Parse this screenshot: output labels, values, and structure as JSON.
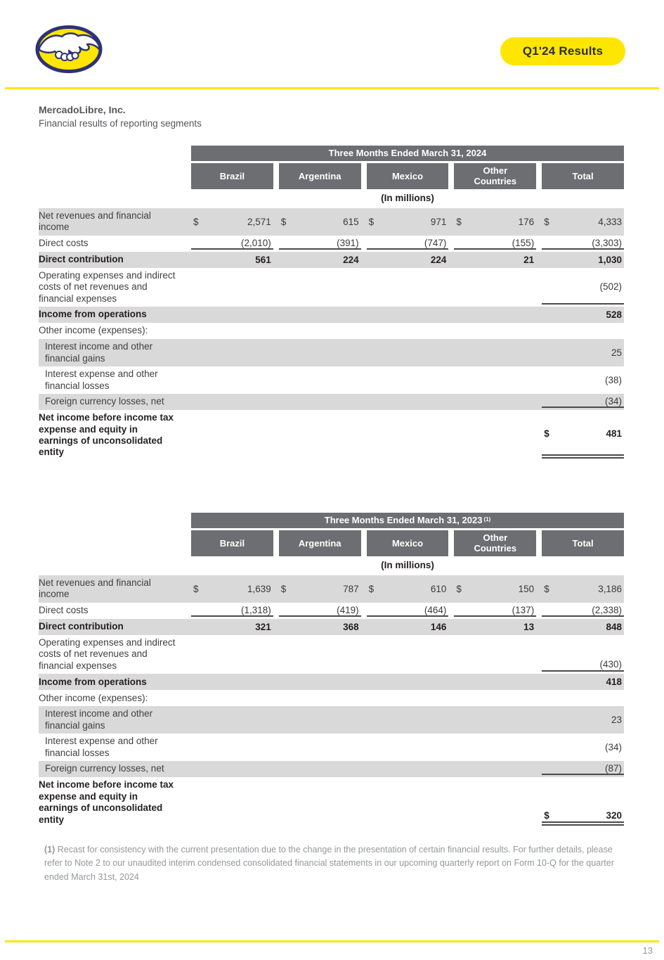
{
  "header": {
    "badge_label": "Q1'24 Results",
    "logo_name": "mercadolibre-handshake-logo"
  },
  "titles": {
    "company": "MercadoLibre, Inc.",
    "subtitle": "Financial results of reporting segments"
  },
  "colors": {
    "brand_yellow": "#FFE600",
    "table_header_gray": "#6D6E71",
    "row_shade_gray": "#D9D9D9",
    "rule_dark": "#4A4A4C"
  },
  "tables": [
    {
      "title": "Three Months Ended March 31, 2024",
      "title_sup": "",
      "columns": [
        "Brazil",
        "Argentina",
        "Mexico",
        "Other\nCountries",
        "Total"
      ],
      "units": "(In millions)",
      "rows": [
        {
          "label": "Net revenues and financial income",
          "shaded": true,
          "cells": [
            {
              "c": "$",
              "v": "2,571"
            },
            {
              "c": "$",
              "v": "615"
            },
            {
              "c": "$",
              "v": "971"
            },
            {
              "c": "$",
              "v": "176"
            },
            {
              "c": "$",
              "v": "4,333"
            }
          ]
        },
        {
          "label": "Direct costs",
          "rule": "all",
          "cells": [
            {
              "v": "(2,010)"
            },
            {
              "v": "(391)"
            },
            {
              "v": "(747)"
            },
            {
              "v": "(155)"
            },
            {
              "v": "(3,303)"
            }
          ]
        },
        {
          "label": "Direct contribution",
          "shaded": true,
          "bold": true,
          "cells": [
            {
              "v": "561"
            },
            {
              "v": "224"
            },
            {
              "v": "224"
            },
            {
              "v": "21"
            },
            {
              "v": "1,030"
            }
          ]
        },
        {
          "label": "Operating expenses and indirect costs of net revenues and financial expenses",
          "rule": "total",
          "cells": [
            null,
            null,
            null,
            null,
            {
              "v": "(502)"
            }
          ]
        },
        {
          "label": "Income from operations",
          "shaded": true,
          "bold": true,
          "cells": [
            null,
            null,
            null,
            null,
            {
              "v": "528"
            }
          ]
        },
        {
          "label": "Other income (expenses):",
          "cells": [
            null,
            null,
            null,
            null,
            null
          ]
        },
        {
          "label": "Interest income and other financial gains",
          "shaded": true,
          "indent": true,
          "cells": [
            null,
            null,
            null,
            null,
            {
              "v": "25"
            }
          ]
        },
        {
          "label": "Interest expense and other financial losses",
          "indent": true,
          "cells": [
            null,
            null,
            null,
            null,
            {
              "v": "(38)"
            }
          ]
        },
        {
          "label": "Foreign currency losses, net",
          "shaded": true,
          "indent": true,
          "rule": "total",
          "cells": [
            null,
            null,
            null,
            null,
            {
              "v": "(34)"
            }
          ]
        },
        {
          "label": "Net income before income tax expense and equity in earnings of unconsolidated entity",
          "bold": true,
          "rule": "double",
          "cells": [
            null,
            null,
            null,
            null,
            {
              "c": "$",
              "v": "481"
            }
          ]
        }
      ]
    },
    {
      "title": "Three Months Ended March 31, 2023",
      "title_sup": "(1)",
      "columns": [
        "Brazil",
        "Argentina",
        "Mexico",
        "Other\nCountries",
        "Total"
      ],
      "units": "(In millions)",
      "rows": [
        {
          "label": "Net revenues and financial income",
          "shaded": true,
          "cells": [
            {
              "c": "$",
              "v": "1,639"
            },
            {
              "c": "$",
              "v": "787"
            },
            {
              "c": "$",
              "v": "610"
            },
            {
              "c": "$",
              "v": "150"
            },
            {
              "c": "$",
              "v": "3,186"
            }
          ]
        },
        {
          "label": "Direct costs",
          "rule": "all",
          "cells": [
            {
              "v": "(1,318)"
            },
            {
              "v": "(419)"
            },
            {
              "v": "(464)"
            },
            {
              "v": "(137)"
            },
            {
              "v": "(2,338)"
            }
          ]
        },
        {
          "label": "Direct contribution",
          "shaded": true,
          "bold": true,
          "cells": [
            {
              "v": "321"
            },
            {
              "v": "368"
            },
            {
              "v": "146"
            },
            {
              "v": "13"
            },
            {
              "v": "848"
            }
          ]
        },
        {
          "label": "Operating expenses and indirect costs of net revenues and financial expenses",
          "rule": "total",
          "valign": "bottom",
          "cells": [
            null,
            null,
            null,
            null,
            {
              "v": "(430)"
            }
          ]
        },
        {
          "label": "Income from operations",
          "shaded": true,
          "bold": true,
          "cells": [
            null,
            null,
            null,
            null,
            {
              "v": "418"
            }
          ]
        },
        {
          "label": "Other income (expenses):",
          "cells": [
            null,
            null,
            null,
            null,
            null
          ]
        },
        {
          "label": "Interest income and other financial gains",
          "shaded": true,
          "indent": true,
          "cells": [
            null,
            null,
            null,
            null,
            {
              "v": "23"
            }
          ]
        },
        {
          "label": "Interest expense and other financial losses",
          "indent": true,
          "cells": [
            null,
            null,
            null,
            null,
            {
              "v": "(34)"
            }
          ]
        },
        {
          "label": "Foreign currency losses, net",
          "shaded": true,
          "indent": true,
          "rule": "total",
          "cells": [
            null,
            null,
            null,
            null,
            {
              "v": "(87)"
            }
          ]
        },
        {
          "label": "Net income before income tax expense and equity in earnings of unconsolidated entity",
          "bold": true,
          "rule": "double",
          "valign": "bottom",
          "cells": [
            null,
            null,
            null,
            null,
            {
              "c": "$",
              "v": "320"
            }
          ]
        }
      ]
    }
  ],
  "footnote": {
    "marker": "(1)",
    "text": "Recast for consistency with the current presentation due to the change in the presentation of certain financial results. For further details, please refer to Note 2 to our unaudited interim condensed consolidated financial statements in our upcoming quarterly report on Form 10-Q for the quarter ended March 31st, 2024"
  },
  "page_number": "13"
}
